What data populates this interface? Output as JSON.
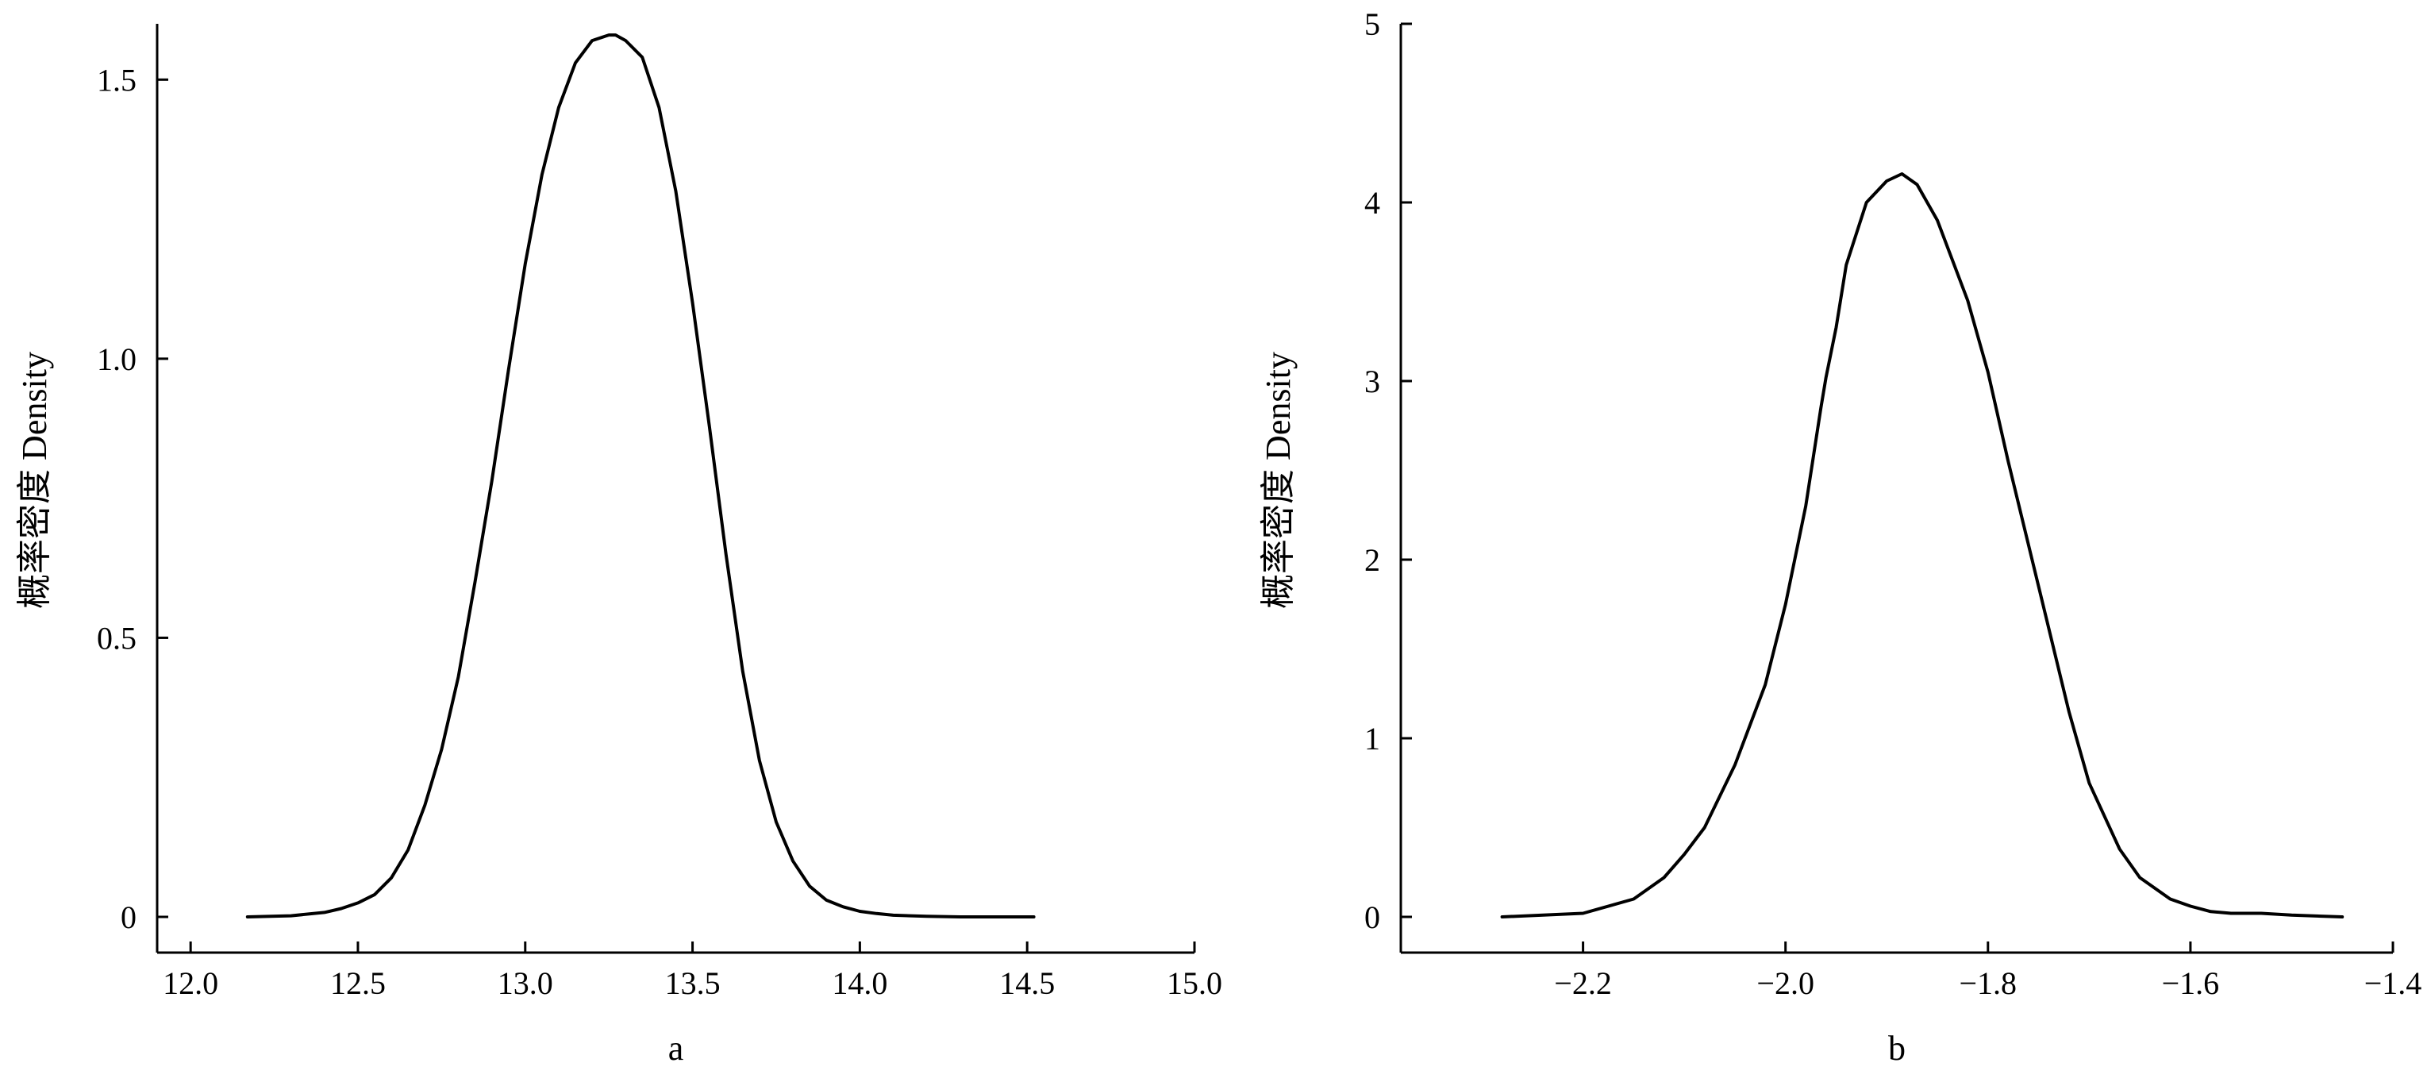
{
  "chart_data": [
    {
      "type": "line",
      "xlabel": "a",
      "ylabel": "概率密度  Density",
      "xlim": [
        11.9,
        15.0
      ],
      "ylim": [
        0,
        1.6
      ],
      "x_ticks": [
        12.0,
        12.5,
        13.0,
        13.5,
        14.0,
        14.5,
        15.0
      ],
      "x_tick_labels": [
        "12.0",
        "12.5",
        "13.0",
        "13.5",
        "14.0",
        "14.5",
        "15.0"
      ],
      "y_ticks": [
        0,
        0.5,
        1.0,
        1.5
      ],
      "y_tick_labels": [
        "0",
        "0.5",
        "1.0",
        "1.5"
      ],
      "grid": false,
      "series": [
        {
          "x": [
            12.17,
            12.3,
            12.4,
            12.45,
            12.5,
            12.55,
            12.6,
            12.65,
            12.7,
            12.75,
            12.8,
            12.85,
            12.9,
            12.95,
            13.0,
            13.05,
            13.1,
            13.15,
            13.2,
            13.25,
            13.27,
            13.3,
            13.35,
            13.4,
            13.45,
            13.5,
            13.55,
            13.6,
            13.65,
            13.7,
            13.75,
            13.8,
            13.85,
            13.9,
            13.95,
            14.0,
            14.05,
            14.1,
            14.2,
            14.3,
            14.52
          ],
          "y": [
            0.0,
            0.002,
            0.008,
            0.015,
            0.025,
            0.04,
            0.07,
            0.12,
            0.2,
            0.3,
            0.43,
            0.6,
            0.78,
            0.98,
            1.17,
            1.33,
            1.45,
            1.53,
            1.57,
            1.58,
            1.58,
            1.57,
            1.54,
            1.45,
            1.3,
            1.1,
            0.88,
            0.65,
            0.44,
            0.28,
            0.17,
            0.1,
            0.055,
            0.03,
            0.018,
            0.01,
            0.006,
            0.003,
            0.001,
            0.0,
            0.0
          ]
        }
      ]
    },
    {
      "type": "line",
      "xlabel": "b",
      "ylabel": "概率密度  Density",
      "xlim": [
        -2.38,
        -1.4
      ],
      "ylim": [
        0,
        5
      ],
      "x_ticks": [
        -2.2,
        -2.0,
        -1.8,
        -1.6,
        -1.4
      ],
      "x_tick_labels": [
        "−2.2",
        "−2.0",
        "−1.8",
        "−1.6",
        "−1.4"
      ],
      "y_ticks": [
        0,
        1,
        2,
        3,
        4,
        5
      ],
      "y_tick_labels": [
        "0",
        "1",
        "2",
        "3",
        "4",
        "5"
      ],
      "grid": false,
      "series": [
        {
          "x": [
            -2.28,
            -2.2,
            -2.15,
            -2.12,
            -2.1,
            -2.08,
            -2.05,
            -2.02,
            -2.0,
            -1.98,
            -1.965,
            -1.96,
            -1.95,
            -1.94,
            -1.92,
            -1.9,
            -1.885,
            -1.87,
            -1.85,
            -1.82,
            -1.8,
            -1.78,
            -1.75,
            -1.72,
            -1.7,
            -1.67,
            -1.65,
            -1.62,
            -1.6,
            -1.58,
            -1.56,
            -1.53,
            -1.5,
            -1.45
          ],
          "y": [
            0.0,
            0.02,
            0.1,
            0.22,
            0.35,
            0.5,
            0.85,
            1.3,
            1.75,
            2.3,
            2.85,
            3.02,
            3.3,
            3.65,
            4.0,
            4.12,
            4.16,
            4.1,
            3.9,
            3.45,
            3.05,
            2.55,
            1.85,
            1.15,
            0.75,
            0.38,
            0.22,
            0.1,
            0.06,
            0.03,
            0.02,
            0.02,
            0.01,
            0.0
          ]
        }
      ]
    }
  ]
}
